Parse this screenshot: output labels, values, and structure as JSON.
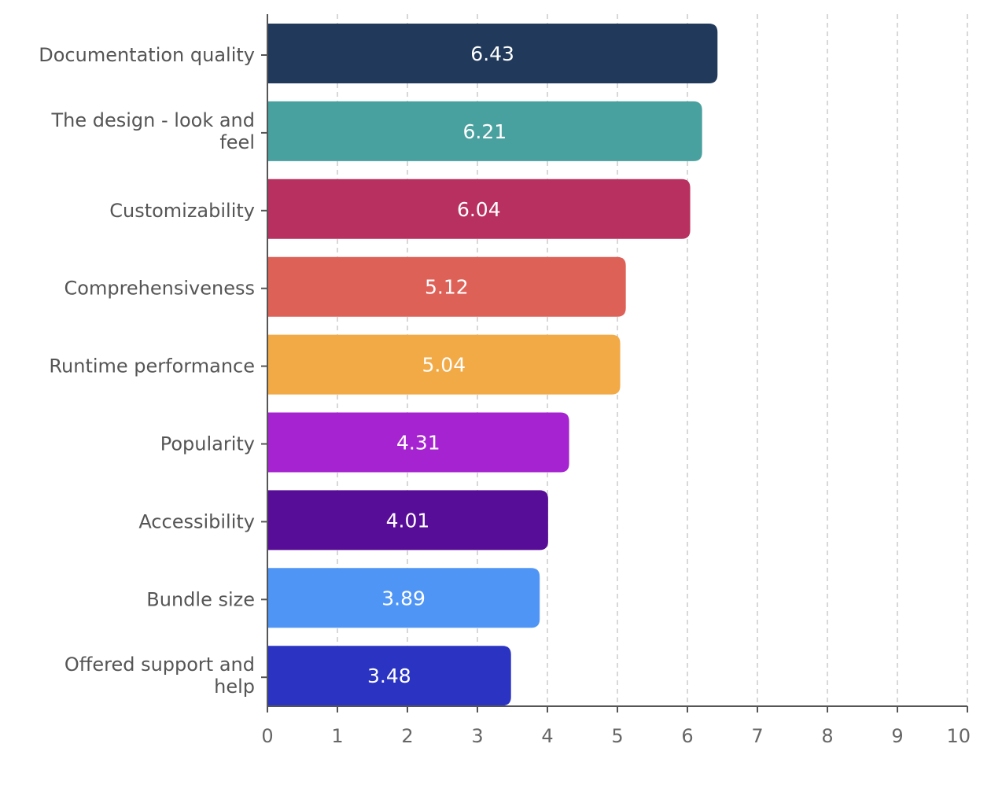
{
  "chart_data": {
    "type": "bar",
    "orientation": "horizontal",
    "categories": [
      "Documentation quality",
      "The design - look and feel",
      "Customizability",
      "Comprehensiveness",
      "Runtime performance",
      "Popularity",
      "Accessibility",
      "Bundle size",
      "Offered support and help"
    ],
    "values": [
      6.43,
      6.21,
      6.04,
      5.12,
      5.04,
      4.31,
      4.01,
      3.89,
      3.48
    ],
    "value_labels": [
      "6.43",
      "6.21",
      "6.04",
      "5.12",
      "5.04",
      "4.31",
      "4.01",
      "3.89",
      "3.48"
    ],
    "colors": [
      "#213a5c",
      "#49a19f",
      "#b8305f",
      "#de6158",
      "#f2aa46",
      "#a623d1",
      "#570d97",
      "#4f95f5",
      "#2b33c3"
    ],
    "xlim": [
      0,
      10
    ],
    "xticks": [
      "0",
      "1",
      "2",
      "3",
      "4",
      "5",
      "6",
      "7",
      "8",
      "9",
      "10"
    ],
    "grid": "vertical dashed",
    "title": "",
    "xlabel": "",
    "ylabel": ""
  }
}
